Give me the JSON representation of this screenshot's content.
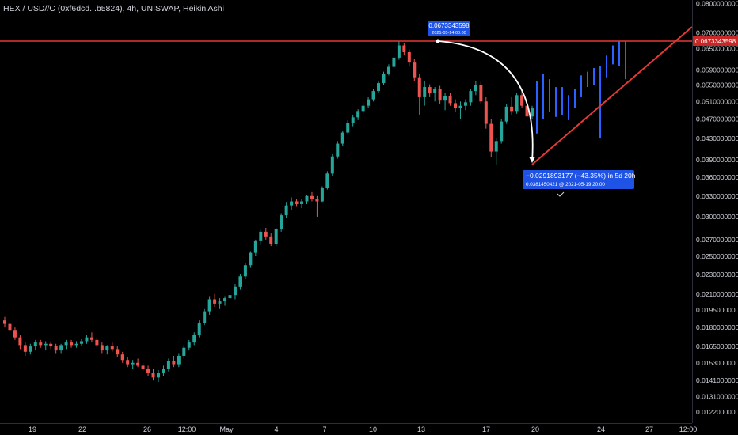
{
  "header": {
    "title": "HEX / USD//C (0xf6dcd...b5824), 4h, UNISWAP, Heikin Ashi"
  },
  "chart_data": {
    "type": "candlestick",
    "scale": "log",
    "ylim": [
      0.0118,
      0.082
    ],
    "y_ticks": [
      "0.0800000000",
      "0.0700000000",
      "0.0650000000",
      "0.0590000000",
      "0.0550000000",
      "0.0510000000",
      "0.0470000000",
      "0.0430000000",
      "0.0390000000",
      "0.0360000000",
      "0.0330000000",
      "0.0300000000",
      "0.0270000000",
      "0.0250000000",
      "0.0230000000",
      "0.0210000000",
      "0.0195000000",
      "0.0180000000",
      "0.0165000000",
      "0.0153000000",
      "0.0141000000",
      "0.0131000000",
      "0.0122000000"
    ],
    "x_ticks": [
      "19",
      "22",
      "26",
      "12:00",
      "May",
      "4",
      "7",
      "10",
      "13",
      "17",
      "20",
      "24",
      "27",
      "12:00"
    ],
    "colors": {
      "up": "#26a69a",
      "down": "#ef5350",
      "projection": "#2962ff",
      "line": "#e53935",
      "tag": "#1e53e5"
    },
    "series": [
      {
        "values": [
          [
            0.0186,
            0.0189,
            0.018,
            0.0183
          ],
          [
            0.0183,
            0.0185,
            0.0176,
            0.0178
          ],
          [
            0.0178,
            0.018,
            0.017,
            0.0172
          ],
          [
            0.0172,
            0.0174,
            0.0163,
            0.0166
          ],
          [
            0.0166,
            0.0168,
            0.0158,
            0.0161
          ],
          [
            0.0161,
            0.0167,
            0.0159,
            0.0165
          ],
          [
            0.0165,
            0.017,
            0.0162,
            0.0168
          ],
          [
            0.0168,
            0.017,
            0.0164,
            0.0166
          ],
          [
            0.0166,
            0.0169,
            0.0162,
            0.0167
          ],
          [
            0.0167,
            0.0169,
            0.0163,
            0.0165
          ],
          [
            0.0165,
            0.0167,
            0.016,
            0.0162
          ],
          [
            0.0162,
            0.0167,
            0.016,
            0.0166
          ],
          [
            0.0166,
            0.017,
            0.0163,
            0.0168
          ],
          [
            0.0168,
            0.017,
            0.0164,
            0.0166
          ],
          [
            0.0166,
            0.0169,
            0.0164,
            0.0167
          ],
          [
            0.0167,
            0.0171,
            0.0165,
            0.0169
          ],
          [
            0.0169,
            0.0174,
            0.0167,
            0.0172
          ],
          [
            0.0172,
            0.0176,
            0.0168,
            0.017
          ],
          [
            0.017,
            0.0172,
            0.0164,
            0.0166
          ],
          [
            0.0166,
            0.0168,
            0.016,
            0.0162
          ],
          [
            0.0162,
            0.0166,
            0.0159,
            0.0165
          ],
          [
            0.0165,
            0.0168,
            0.0161,
            0.0163
          ],
          [
            0.0163,
            0.0165,
            0.0157,
            0.0159
          ],
          [
            0.0159,
            0.0161,
            0.0153,
            0.0155
          ],
          [
            0.0155,
            0.0157,
            0.015,
            0.0152
          ],
          [
            0.0152,
            0.0155,
            0.0149,
            0.0153
          ],
          [
            0.0153,
            0.0156,
            0.015,
            0.0151
          ],
          [
            0.0151,
            0.0153,
            0.0147,
            0.0149
          ],
          [
            0.0149,
            0.0151,
            0.0144,
            0.0146
          ],
          [
            0.0146,
            0.0149,
            0.0141,
            0.0143
          ],
          [
            0.0143,
            0.0148,
            0.014,
            0.0146
          ],
          [
            0.0146,
            0.0151,
            0.0144,
            0.0149
          ],
          [
            0.0149,
            0.0156,
            0.0147,
            0.0154
          ],
          [
            0.0154,
            0.0158,
            0.015,
            0.0152
          ],
          [
            0.0152,
            0.016,
            0.015,
            0.0158
          ],
          [
            0.0158,
            0.0166,
            0.0156,
            0.0164
          ],
          [
            0.0164,
            0.017,
            0.0162,
            0.0168
          ],
          [
            0.0168,
            0.0176,
            0.0166,
            0.0174
          ],
          [
            0.0174,
            0.0186,
            0.0172,
            0.0184
          ],
          [
            0.0184,
            0.0196,
            0.0182,
            0.0194
          ],
          [
            0.0194,
            0.0208,
            0.0191,
            0.0205
          ],
          [
            0.0205,
            0.021,
            0.0198,
            0.0201
          ],
          [
            0.0201,
            0.0206,
            0.0196,
            0.0203
          ],
          [
            0.0203,
            0.0208,
            0.0199,
            0.0206
          ],
          [
            0.0206,
            0.0212,
            0.0202,
            0.0209
          ],
          [
            0.0209,
            0.022,
            0.0205,
            0.0217
          ],
          [
            0.0217,
            0.023,
            0.0214,
            0.0228
          ],
          [
            0.0228,
            0.0242,
            0.0225,
            0.024
          ],
          [
            0.024,
            0.0256,
            0.0237,
            0.0254
          ],
          [
            0.0254,
            0.027,
            0.025,
            0.0268
          ],
          [
            0.0268,
            0.0284,
            0.0263,
            0.028
          ],
          [
            0.028,
            0.0285,
            0.027,
            0.0273
          ],
          [
            0.0273,
            0.0278,
            0.0262,
            0.0265
          ],
          [
            0.0265,
            0.0285,
            0.0262,
            0.0283
          ],
          [
            0.0283,
            0.0305,
            0.028,
            0.0302
          ],
          [
            0.0302,
            0.032,
            0.0298,
            0.0316
          ],
          [
            0.0316,
            0.0328,
            0.031,
            0.0322
          ],
          [
            0.0322,
            0.0326,
            0.0314,
            0.0318
          ],
          [
            0.0318,
            0.0325,
            0.0312,
            0.0322
          ],
          [
            0.0322,
            0.0332,
            0.0318,
            0.033
          ],
          [
            0.033,
            0.0336,
            0.0322,
            0.0325
          ],
          [
            0.0325,
            0.033,
            0.03,
            0.0322
          ],
          [
            0.0322,
            0.0345,
            0.032,
            0.0342
          ],
          [
            0.0342,
            0.037,
            0.034,
            0.0366
          ],
          [
            0.0366,
            0.04,
            0.0362,
            0.0396
          ],
          [
            0.0396,
            0.0425,
            0.0392,
            0.042
          ],
          [
            0.042,
            0.0446,
            0.0416,
            0.0442
          ],
          [
            0.0442,
            0.0468,
            0.0438,
            0.0462
          ],
          [
            0.0462,
            0.048,
            0.0455,
            0.0474
          ],
          [
            0.0474,
            0.0492,
            0.0468,
            0.0488
          ],
          [
            0.0488,
            0.0506,
            0.0482,
            0.05
          ],
          [
            0.05,
            0.052,
            0.0494,
            0.0515
          ],
          [
            0.0515,
            0.054,
            0.051,
            0.0535
          ],
          [
            0.0535,
            0.056,
            0.053,
            0.0555
          ],
          [
            0.0555,
            0.0585,
            0.055,
            0.058
          ],
          [
            0.058,
            0.0605,
            0.0575,
            0.0598
          ],
          [
            0.0598,
            0.063,
            0.0592,
            0.0624
          ],
          [
            0.0624,
            0.0673,
            0.0618,
            0.066
          ],
          [
            0.066,
            0.0668,
            0.0632,
            0.064
          ],
          [
            0.064,
            0.0648,
            0.06,
            0.061
          ],
          [
            0.061,
            0.062,
            0.056,
            0.057
          ],
          [
            0.057,
            0.0578,
            0.048,
            0.052
          ],
          [
            0.052,
            0.056,
            0.05,
            0.0545
          ],
          [
            0.0545,
            0.0552,
            0.052,
            0.053
          ],
          [
            0.053,
            0.0545,
            0.051,
            0.054
          ],
          [
            0.054,
            0.0548,
            0.0505,
            0.0512
          ],
          [
            0.0512,
            0.053,
            0.049,
            0.0522
          ],
          [
            0.0522,
            0.053,
            0.05,
            0.0506
          ],
          [
            0.0506,
            0.0515,
            0.0485,
            0.0495
          ],
          [
            0.0495,
            0.051,
            0.047,
            0.05
          ],
          [
            0.05,
            0.0515,
            0.049,
            0.0508
          ],
          [
            0.0508,
            0.054,
            0.05,
            0.0535
          ],
          [
            0.0535,
            0.056,
            0.0525,
            0.055
          ],
          [
            0.055,
            0.0558,
            0.0505,
            0.051
          ],
          [
            0.051,
            0.052,
            0.045,
            0.046
          ],
          [
            0.046,
            0.047,
            0.0395,
            0.0405
          ],
          [
            0.0405,
            0.043,
            0.0381,
            0.0425
          ],
          [
            0.0425,
            0.047,
            0.042,
            0.0465
          ],
          [
            0.0465,
            0.0505,
            0.046,
            0.0498
          ],
          [
            0.0498,
            0.052,
            0.048,
            0.0488
          ],
          [
            0.0488,
            0.053,
            0.0482,
            0.0525
          ],
          [
            0.0525,
            0.0535,
            0.0495,
            0.05
          ],
          [
            0.05,
            0.051,
            0.047,
            0.0476
          ],
          [
            0.0476,
            0.05,
            0.047,
            0.0494
          ]
        ]
      },
      {
        "values": [
          [
            0.0494,
            0.056,
            0.044,
            0.052
          ],
          [
            0.052,
            0.058,
            0.047,
            0.0548
          ],
          [
            0.0548,
            0.0565,
            0.0485,
            0.0505
          ],
          [
            0.0505,
            0.0545,
            0.0475,
            0.053
          ],
          [
            0.053,
            0.0545,
            0.048,
            0.0498
          ],
          [
            0.0498,
            0.0525,
            0.0468,
            0.051
          ],
          [
            0.051,
            0.054,
            0.0495,
            0.053
          ],
          [
            0.053,
            0.0575,
            0.052,
            0.0568
          ],
          [
            0.0568,
            0.0585,
            0.0545,
            0.056
          ],
          [
            0.056,
            0.0595,
            0.055,
            0.059
          ],
          [
            0.059,
            0.06,
            0.043,
            0.058
          ],
          [
            0.058,
            0.063,
            0.057,
            0.062
          ],
          [
            0.062,
            0.066,
            0.0605,
            0.065
          ],
          [
            0.065,
            0.0673,
            0.06,
            0.0668
          ],
          [
            0.0668,
            0.0672,
            0.0565,
            0.06
          ]
        ]
      }
    ],
    "markers": {
      "high_value": "0.0673343598",
      "high_date": "2021-05-14 00:00",
      "price_tag": "0.0673343598",
      "measure_line1": "−0.0291893177 (−43.35%) in 5d 20h",
      "measure_line2": "0.0381450421 @ 2021-05-19  20:00"
    }
  }
}
